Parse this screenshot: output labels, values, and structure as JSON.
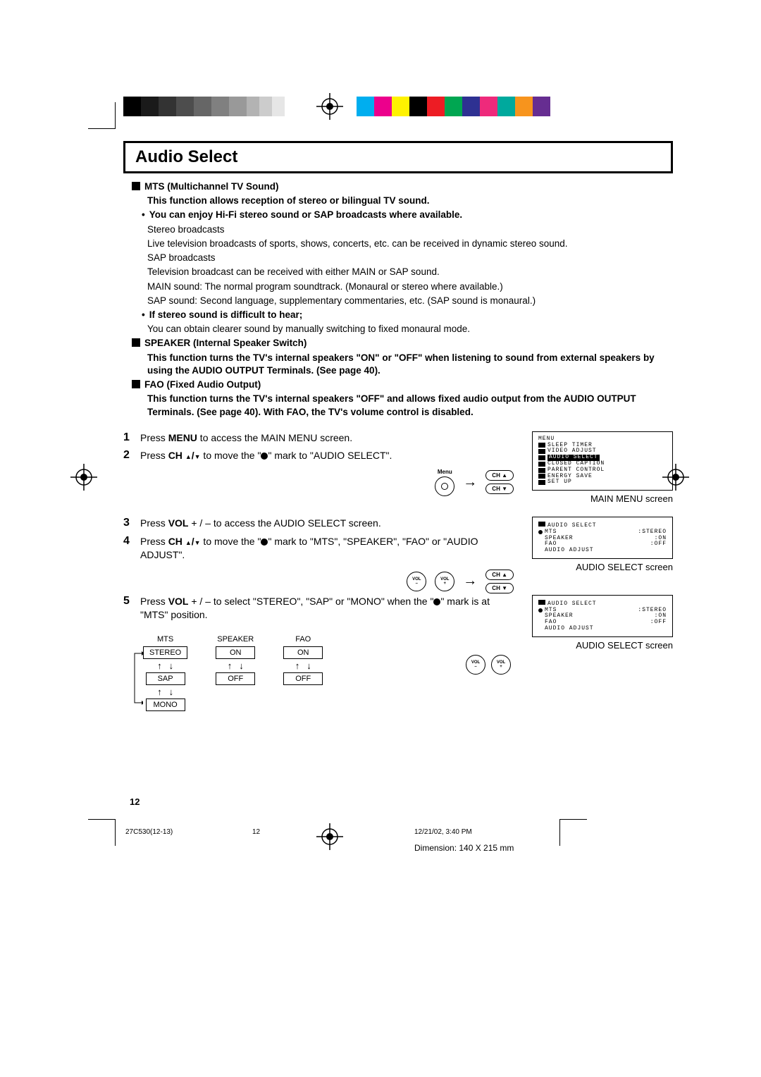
{
  "colorbar": {
    "grays": [
      "#000000",
      "#1a1a1a",
      "#333333",
      "#4d4d4d",
      "#666666",
      "#808080",
      "#999999",
      "#b3b3b3",
      "#cccccc",
      "#e6e6e6",
      "#ffffff"
    ],
    "gray_widths": [
      25,
      25,
      25,
      25,
      25,
      25,
      25,
      18,
      18,
      18,
      18
    ],
    "colors": [
      "#00aeef",
      "#ec008c",
      "#fff200",
      "#000000",
      "#ed1c24",
      "#00a651",
      "#2e3192",
      "#ee2a7b",
      "#00a99d",
      "#f7941d",
      "#662d91"
    ]
  },
  "title": "Audio Select",
  "intro": {
    "mts_heading": "MTS (Multichannel TV Sound)",
    "mts_desc": "This function allows reception of stereo or bilingual TV sound.",
    "hifi": "You can enjoy Hi-Fi stereo sound or SAP broadcasts where available.",
    "stereo_h": "Stereo broadcasts",
    "stereo_t": "Live television broadcasts of sports, shows, concerts, etc. can be received in dynamic stereo sound.",
    "sap_h": "SAP broadcasts",
    "sap_t1": "Television broadcast can be received with either MAIN or SAP sound.",
    "sap_t2": "MAIN sound: The normal program soundtrack. (Monaural or stereo where available.)",
    "sap_t3": "SAP sound: Second language, supplementary commentaries, etc. (SAP sound is monaural.)",
    "diff_h": "If stereo sound is difficult to hear;",
    "diff_t": "You can obtain clearer sound by manually switching to fixed monaural mode.",
    "speaker_h": "SPEAKER (Internal Speaker Switch)",
    "speaker_t": "This function turns the TV's internal speakers \"ON\" or \"OFF\" when listening to sound from external speakers by using the AUDIO OUTPUT Terminals. (See page 40).",
    "fao_h": "FAO (Fixed Audio Output)",
    "fao_t": "This function turns the TV's internal speakers \"OFF\" and allows fixed audio output from the AUDIO OUTPUT Terminals. (See page 40). With FAO, the TV's volume control is disabled."
  },
  "steps": {
    "s1": "Press MENU to access the MAIN MENU screen.",
    "s2a": "Press CH ",
    "s2b": " to move the \"",
    "s2c": "\" mark to \"AUDIO SELECT\".",
    "s3a": "Press VOL ",
    "s3b": " to access the AUDIO SELECT screen.",
    "s4a": "Press CH ",
    "s4b": " to move the \"",
    "s4c": "\" mark to \"MTS\", \"SPEAKER\", \"FAO\" or \"AUDIO ADJUST\".",
    "s5a": "Press VOL ",
    "s5b": " to select \"STEREO\", \"SAP\" or \"MONO\" when the \"",
    "s5c": "\" mark is at \"MTS\" position.",
    "plus_minus": "+ / –",
    "updown": "▲/▼"
  },
  "buttons": {
    "menu": "Menu",
    "ch_up": "CH ▲",
    "ch_down": "CH ▼",
    "vol_minus": "VOL\n–",
    "vol_plus": "VOL\n+"
  },
  "osd_main": {
    "title": "MENU",
    "items": [
      "SLEEP TIMER",
      "VIDEO ADJUST",
      "AUDIO SELECT",
      "CLOSED CAPTION",
      "PARENT CONTROL",
      "ENERGY SAVE",
      "SET UP"
    ],
    "selected_index": 2,
    "caption": "MAIN MENU screen"
  },
  "osd_audio1": {
    "title": "AUDIO SELECT",
    "rows": [
      {
        "label": "MTS",
        "val": ":STEREO",
        "sel": true
      },
      {
        "label": "SPEAKER",
        "val": ":ON"
      },
      {
        "label": "FAO",
        "val": ":OFF"
      },
      {
        "label": "AUDIO ADJUST",
        "val": ""
      }
    ],
    "caption": "AUDIO SELECT screen"
  },
  "osd_audio2": {
    "title": "AUDIO SELECT",
    "rows": [
      {
        "label": "MTS",
        "val": ":STEREO",
        "sel": true
      },
      {
        "label": "SPEAKER",
        "val": ":ON"
      },
      {
        "label": "FAO",
        "val": ":OFF"
      },
      {
        "label": "AUDIO ADJUST",
        "val": ""
      }
    ],
    "caption": "AUDIO SELECT screen"
  },
  "options_table": {
    "cols": [
      "MTS",
      "SPEAKER",
      "FAO"
    ],
    "mts": [
      "STEREO",
      "SAP",
      "MONO"
    ],
    "speaker": [
      "ON",
      "OFF"
    ],
    "fao": [
      "ON",
      "OFF"
    ]
  },
  "footer": {
    "page_num": "12",
    "file": "27C530(12-13)",
    "page": "12",
    "date": "12/21/02, 3:40 PM",
    "dimension": "Dimension: 140  X 215 mm"
  }
}
